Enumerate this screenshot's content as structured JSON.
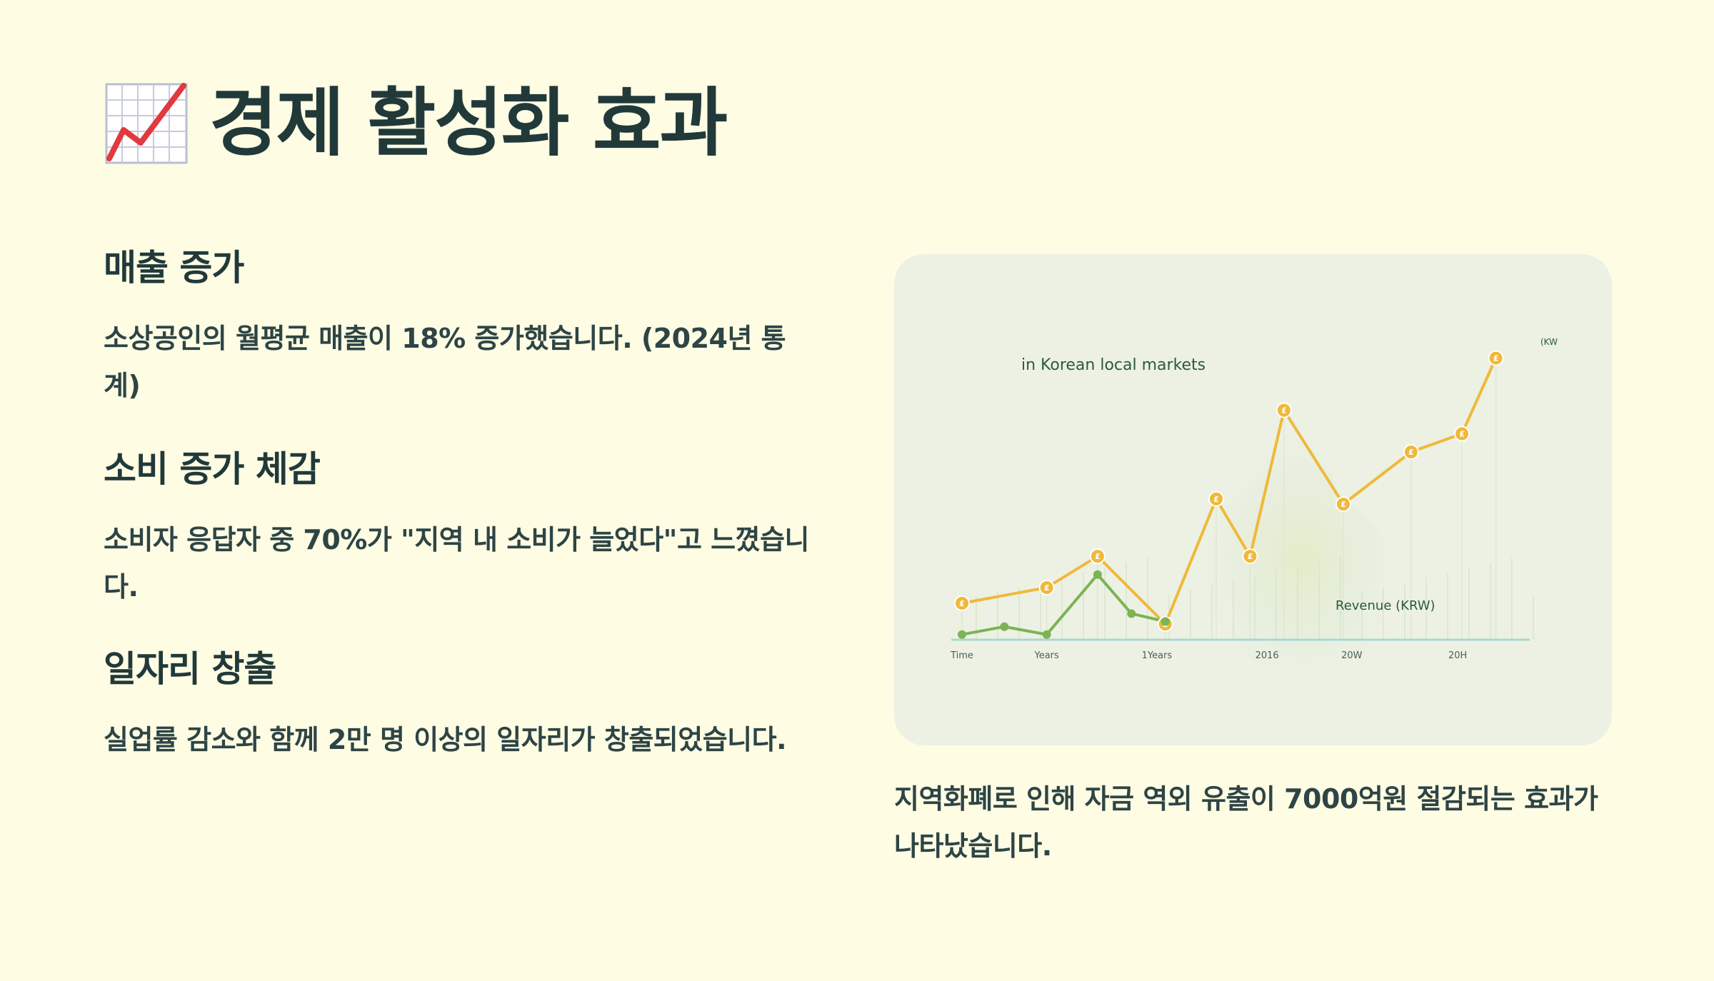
{
  "page": {
    "title": "경제 활성화 효과",
    "title_icon": "chart-increasing-icon"
  },
  "sections": [
    {
      "heading": "매출 증가",
      "text": "소상공인의 월평균 매출이 18% 증가했습니다. (2024년 통계)"
    },
    {
      "heading": "소비 증가 체감",
      "text": "소비자 응답자 중 70%가 \"지역 내 소비가 늘었다\"고 느꼈습니다."
    },
    {
      "heading": "일자리 창출",
      "text": "실업률 감소와 함께 2만 명 이상의 일자리가 창출되었습니다."
    }
  ],
  "caption": "지역화폐로 인해 자금 역외 유출이 7000억원 절감되는 효과가 나타났습니다.",
  "colors": {
    "background": "#fefde4",
    "text": "#22393a",
    "card": "#edf1e4",
    "yellow_series": "#efb93a",
    "green_series": "#7cb356",
    "baseline": "#a9d8d0"
  },
  "chart_data": {
    "type": "line",
    "title": "in Korean local markets",
    "series_label": "Revenue (KRW)",
    "corner_label": "(KW",
    "x_tick_labels": [
      "Time",
      "Years",
      "1Years",
      "2016",
      "20W",
      "20H"
    ],
    "series": [
      {
        "name": "yellow",
        "color": "#efb93a",
        "marker": "coin",
        "x": [
          0,
          1,
          1.6,
          2.4,
          3.0,
          3.4,
          3.8,
          4.5,
          5.3,
          5.9,
          6.3
        ],
        "y": [
          1.4,
          2.0,
          3.2,
          0.6,
          5.4,
          3.2,
          8.8,
          5.2,
          7.2,
          7.9,
          10.8
        ]
      },
      {
        "name": "green",
        "color": "#7cb356",
        "marker": "dot",
        "x": [
          0,
          0.5,
          1.0,
          1.6,
          2.0,
          2.4
        ],
        "y": [
          0.2,
          0.5,
          0.2,
          2.5,
          1.0,
          0.7
        ]
      }
    ],
    "grid": true,
    "xlim": [
      0,
      6.7
    ],
    "ylim": [
      0,
      11.5
    ]
  }
}
